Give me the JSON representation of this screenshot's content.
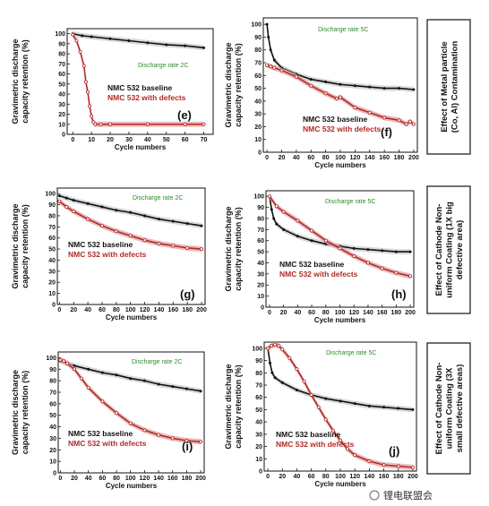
{
  "colors": {
    "baseline": "#111111",
    "defects": "#b22a2a",
    "defects_band": "#e6a9a9",
    "baseline_band": "#cfcfcf",
    "rate": "#2e8b2e"
  },
  "side_labels": [
    [
      "Effect of Metal particle",
      "(Co, Al) Contamination"
    ],
    [
      "Effect of Cathode Non-",
      "uniform Coating (1X big",
      "defective area)"
    ],
    [
      "Effect of Cathode Non-",
      "uniform Coating (3X",
      "small defective areas)"
    ]
  ],
  "watermark": "锂电联盟会",
  "chart_data": [
    {
      "id": "e",
      "type": "line",
      "label": "(e)",
      "rate": "Discharge rate 2C",
      "xlabel": "Cycle numbers",
      "ylabel": "Gravimetric discharge capacity retention (%)",
      "xlim": [
        -3,
        75
      ],
      "ylim": [
        0,
        105
      ],
      "xticks": [
        0,
        10,
        20,
        30,
        40,
        50,
        60,
        70
      ],
      "yticks": [
        0,
        10,
        20,
        30,
        40,
        50,
        60,
        70,
        80,
        90,
        100
      ],
      "series": [
        {
          "name": "NMC 532 baseline",
          "x": [
            0,
            5,
            10,
            20,
            30,
            40,
            50,
            60,
            70
          ],
          "y": [
            100,
            98,
            97,
            95,
            93,
            91,
            89,
            88,
            86
          ]
        },
        {
          "name": "NMC 532 with defects",
          "x": [
            0,
            2,
            4,
            6,
            7,
            8,
            9,
            10,
            11,
            12,
            15,
            20,
            40,
            60,
            70
          ],
          "y": [
            99,
            93,
            82,
            68,
            52,
            42,
            28,
            18,
            12,
            10,
            10,
            10,
            10,
            10,
            10
          ]
        }
      ]
    },
    {
      "id": "f",
      "type": "line",
      "label": "(f)",
      "rate": "Discharge rate 5C",
      "xlabel": "Cycle numbers",
      "ylabel": "Gravimetric discharge capacity retention (%)",
      "xlim": [
        -5,
        205
      ],
      "ylim": [
        0,
        105
      ],
      "xticks": [
        0,
        20,
        40,
        60,
        80,
        100,
        120,
        140,
        160,
        180,
        200
      ],
      "yticks": [
        0,
        10,
        20,
        30,
        40,
        50,
        60,
        70,
        80,
        90,
        100
      ],
      "series": [
        {
          "name": "NMC 532 baseline",
          "x": [
            0,
            2,
            5,
            10,
            20,
            40,
            60,
            80,
            100,
            120,
            140,
            160,
            180,
            200
          ],
          "y": [
            100,
            90,
            80,
            72,
            66,
            61,
            57,
            55,
            53,
            52,
            51,
            50,
            50,
            49
          ]
        },
        {
          "name": "NMC 532 with defects",
          "x": [
            0,
            5,
            10,
            20,
            40,
            60,
            80,
            95,
            100,
            120,
            140,
            160,
            180,
            190,
            195,
            200
          ],
          "y": [
            68,
            67,
            66,
            64,
            59,
            52,
            46,
            42,
            43,
            35,
            31,
            27,
            25,
            22,
            24,
            22
          ]
        }
      ]
    },
    {
      "id": "g",
      "type": "line",
      "label": "(g)",
      "rate": "Discharge rate 2C",
      "xlabel": "Cycle numbers",
      "ylabel": "Gravimetric discharge capacity retention (%)",
      "xlim": [
        -3,
        205
      ],
      "ylim": [
        0,
        105
      ],
      "xticks": [
        0,
        20,
        40,
        60,
        80,
        100,
        120,
        140,
        160,
        180,
        200
      ],
      "yticks": [
        0,
        10,
        20,
        30,
        40,
        50,
        60,
        70,
        80,
        90,
        100
      ],
      "series": [
        {
          "name": "NMC 532 baseline",
          "x": [
            0,
            10,
            20,
            40,
            60,
            80,
            100,
            120,
            140,
            160,
            180,
            200
          ],
          "y": [
            98,
            96,
            94,
            91,
            88,
            85,
            83,
            80,
            77,
            75,
            73,
            71
          ]
        },
        {
          "name": "NMC 532 with defects",
          "x": [
            0,
            10,
            20,
            40,
            60,
            80,
            100,
            120,
            140,
            160,
            180,
            200
          ],
          "y": [
            93,
            88,
            84,
            77,
            71,
            66,
            62,
            58,
            55,
            53,
            51,
            50
          ]
        }
      ]
    },
    {
      "id": "h",
      "type": "line",
      "label": "(h)",
      "rate": "Discharge rate 5C",
      "xlabel": "Cycle numbers",
      "ylabel": "Gravimetric discharge capacity retention (%)",
      "xlim": [
        -5,
        205
      ],
      "ylim": [
        0,
        105
      ],
      "xticks": [
        0,
        20,
        40,
        60,
        80,
        100,
        120,
        140,
        160,
        180,
        200
      ],
      "yticks": [
        0,
        10,
        20,
        30,
        40,
        50,
        60,
        70,
        80,
        90,
        100
      ],
      "series": [
        {
          "name": "NMC 532 baseline",
          "x": [
            0,
            3,
            6,
            10,
            20,
            40,
            60,
            80,
            100,
            120,
            140,
            160,
            180,
            200
          ],
          "y": [
            100,
            88,
            80,
            75,
            70,
            64,
            60,
            57,
            55,
            53,
            52,
            51,
            50,
            50
          ]
        },
        {
          "name": "NMC 532 with defects",
          "x": [
            0,
            10,
            20,
            40,
            60,
            80,
            100,
            120,
            140,
            160,
            180,
            200
          ],
          "y": [
            100,
            91,
            86,
            78,
            69,
            60,
            53,
            46,
            40,
            35,
            31,
            28
          ]
        }
      ]
    },
    {
      "id": "i",
      "type": "line",
      "label": "(i)",
      "rate": "Discharge rate 2C",
      "xlabel": "Cycle numbers",
      "ylabel": "Gravimetric discharge capacity retention (%)",
      "xlim": [
        -3,
        205
      ],
      "ylim": [
        0,
        105
      ],
      "xticks": [
        0,
        20,
        40,
        60,
        80,
        100,
        120,
        140,
        160,
        180,
        200
      ],
      "yticks": [
        0,
        10,
        20,
        30,
        40,
        50,
        60,
        70,
        80,
        90,
        100
      ],
      "series": [
        {
          "name": "NMC 532 baseline",
          "x": [
            0,
            10,
            20,
            40,
            60,
            80,
            100,
            120,
            140,
            160,
            180,
            200
          ],
          "y": [
            97,
            95,
            93,
            90,
            87,
            85,
            82,
            80,
            77,
            75,
            73,
            71
          ]
        },
        {
          "name": "NMC 532 with defects",
          "x": [
            0,
            5,
            10,
            20,
            30,
            40,
            60,
            80,
            100,
            120,
            140,
            160,
            180,
            200
          ],
          "y": [
            98,
            97,
            95,
            90,
            82,
            74,
            62,
            52,
            43,
            37,
            33,
            30,
            28,
            27
          ]
        }
      ]
    },
    {
      "id": "j",
      "type": "line",
      "label": "(j)",
      "rate": "Discharge rate 5C",
      "xlabel": "Cycle numbers",
      "ylabel": "Gravimetric discharge capacity retention (%)",
      "xlim": [
        -5,
        205
      ],
      "ylim": [
        0,
        105
      ],
      "xticks": [
        0,
        20,
        40,
        60,
        80,
        100,
        120,
        140,
        160,
        180,
        200
      ],
      "yticks": [
        0,
        10,
        20,
        30,
        40,
        50,
        60,
        70,
        80,
        90,
        100
      ],
      "series": [
        {
          "name": "NMC 532 baseline",
          "x": [
            0,
            3,
            6,
            10,
            20,
            40,
            60,
            80,
            100,
            120,
            140,
            160,
            180,
            200
          ],
          "y": [
            100,
            88,
            80,
            76,
            72,
            66,
            62,
            59,
            57,
            55,
            53,
            52,
            51,
            50
          ]
        },
        {
          "name": "NMC 532 with defects",
          "x": [
            0,
            5,
            10,
            15,
            20,
            30,
            40,
            50,
            60,
            70,
            80,
            90,
            100,
            110,
            120,
            140,
            160,
            180,
            200
          ],
          "y": [
            100,
            102,
            103,
            102,
            99,
            92,
            83,
            73,
            62,
            52,
            42,
            33,
            25,
            18,
            13,
            8,
            5,
            4,
            3
          ]
        }
      ]
    }
  ]
}
